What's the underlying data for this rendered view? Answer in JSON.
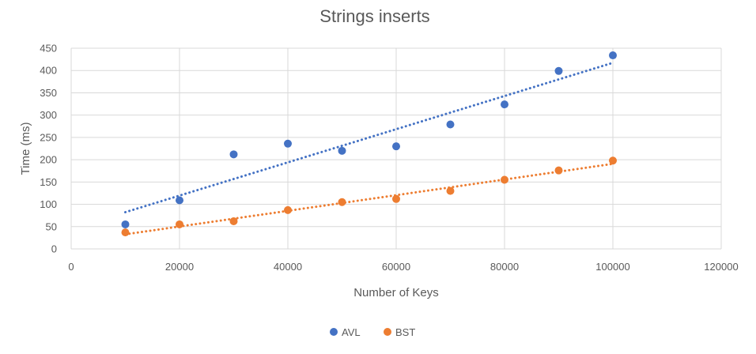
{
  "chart_data": {
    "type": "scatter",
    "title": "Strings inserts",
    "xlabel": "Number of Keys",
    "ylabel": "Time (ms)",
    "xlim": [
      0,
      120000
    ],
    "ylim": [
      0,
      450
    ],
    "xticks": [
      0,
      20000,
      40000,
      60000,
      80000,
      100000,
      120000
    ],
    "yticks": [
      0,
      50,
      100,
      150,
      200,
      250,
      300,
      350,
      400,
      450
    ],
    "grid": true,
    "legend_position": "bottom",
    "series": [
      {
        "name": "AVL",
        "color": "#4472C4",
        "x": [
          10000,
          20000,
          30000,
          40000,
          50000,
          60000,
          70000,
          80000,
          90000,
          100000
        ],
        "y": [
          55,
          109,
          212,
          236,
          220,
          230,
          279,
          324,
          399,
          434
        ],
        "trendline": {
          "type": "linear",
          "style": "dotted"
        }
      },
      {
        "name": "BST",
        "color": "#ED7D31",
        "x": [
          10000,
          20000,
          30000,
          40000,
          50000,
          60000,
          70000,
          80000,
          90000,
          100000
        ],
        "y": [
          37,
          55,
          62,
          87,
          105,
          112,
          130,
          155,
          176,
          198
        ],
        "trendline": {
          "type": "linear",
          "style": "dotted"
        }
      }
    ]
  }
}
